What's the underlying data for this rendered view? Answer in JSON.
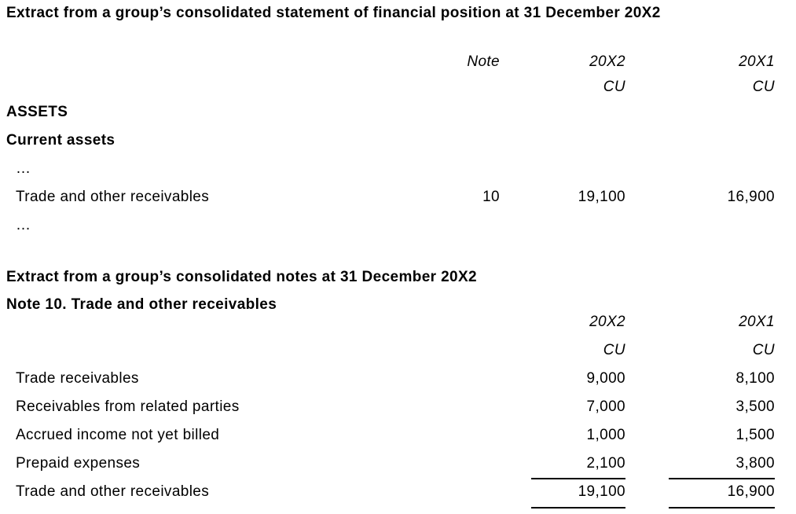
{
  "colors": {
    "background": "#ffffff",
    "text": "#000000",
    "rule": "#000000"
  },
  "statement": {
    "title": "Extract from a group’s consolidated statement of financial position at 31 December 20X2",
    "columns": {
      "note": "Note",
      "y2": "20X2",
      "y1": "20X1",
      "unit": "CU"
    },
    "sections": [
      {
        "label": "ASSETS"
      },
      {
        "label": "Current assets"
      }
    ],
    "ellipsis": "…",
    "row": {
      "label": "Trade and other receivables",
      "note": "10",
      "y2": "19,100",
      "y1": "16,900"
    }
  },
  "notes": {
    "title": "Extract from a group’s consolidated notes at 31 December 20X2",
    "subtitle": "Note 10. Trade and other receivables",
    "columns": {
      "y2": "20X2",
      "y1": "20X1",
      "unit": "CU"
    },
    "rows": [
      {
        "label": "Trade receivables",
        "y2": "9,000",
        "y1": "8,100"
      },
      {
        "label": "Receivables from related parties",
        "y2": "7,000",
        "y1": "3,500"
      },
      {
        "label": "Accrued income not yet billed",
        "y2": "1,000",
        "y1": "1,500"
      },
      {
        "label": "Prepaid expenses",
        "y2": "2,100",
        "y1": "3,800"
      },
      {
        "label": "Trade and other receivables",
        "y2": "19,100",
        "y1": "16,900"
      }
    ]
  }
}
